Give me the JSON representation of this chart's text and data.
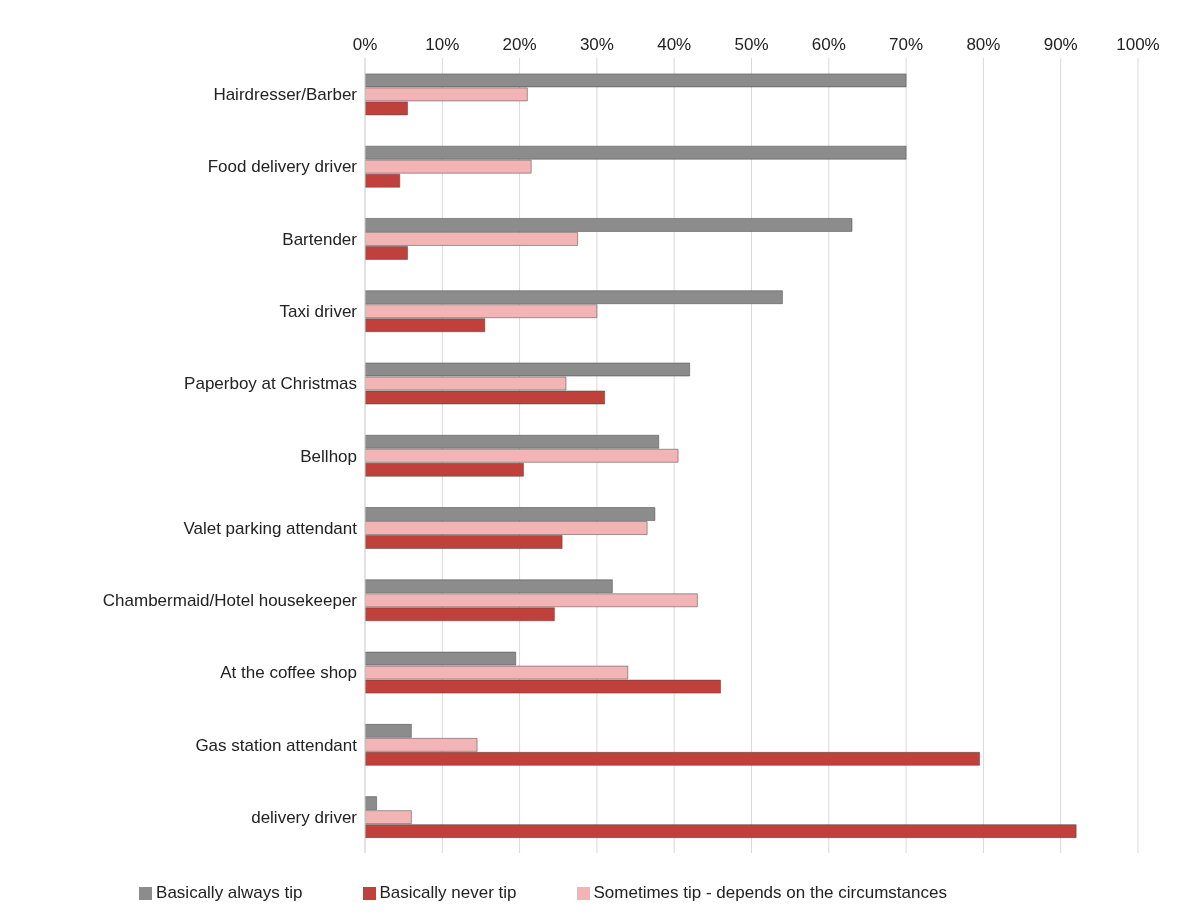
{
  "chart_data": {
    "type": "bar",
    "orientation": "horizontal",
    "categories": [
      "Hairdresser/Barber",
      "Food delivery driver",
      "Bartender",
      "Taxi driver",
      "Paperboy at Christmas",
      "Bellhop",
      "Valet parking attendant",
      "Chambermaid/Hotel housekeeper",
      "At the coffee shop",
      "Gas station attendant",
      "delivery driver"
    ],
    "series": [
      {
        "name": "Basically always tip",
        "color": "#8c8c8c",
        "values": [
          70,
          70,
          63,
          54,
          42,
          38,
          37.5,
          32,
          19.5,
          6,
          1.5
        ]
      },
      {
        "name": "Sometimes tip - depends on the circumstances",
        "color": "#f2b4b4",
        "values": [
          21,
          21.5,
          27.5,
          30,
          26,
          40.5,
          36.5,
          43,
          34,
          14.5,
          6
        ]
      },
      {
        "name": "Basically never tip",
        "color": "#c0403c",
        "values": [
          5.5,
          4.5,
          5.5,
          15.5,
          31,
          20.5,
          25.5,
          24.5,
          46,
          79.5,
          92
        ]
      }
    ],
    "xlim": [
      0,
      100
    ],
    "xticks": [
      {
        "value": 0,
        "label": "0%"
      },
      {
        "value": 10,
        "label": "10%"
      },
      {
        "value": 20,
        "label": "20%"
      },
      {
        "value": 30,
        "label": "30%"
      },
      {
        "value": 40,
        "label": "40%"
      },
      {
        "value": 50,
        "label": "50%"
      },
      {
        "value": 60,
        "label": "60%"
      },
      {
        "value": 70,
        "label": "70%"
      },
      {
        "value": 80,
        "label": "80%"
      },
      {
        "value": 90,
        "label": "90%"
      },
      {
        "value": 100,
        "label": "100%"
      }
    ],
    "grid": "x",
    "legend": "bottom"
  }
}
